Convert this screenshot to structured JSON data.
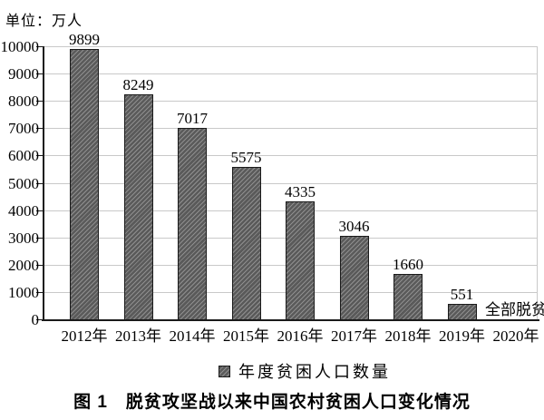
{
  "unit_label": "单位：万人",
  "chart_data": {
    "type": "bar",
    "title": "图 1　脱贫攻坚战以来中国农村贫困人口变化情况",
    "categories": [
      "2012年",
      "2013年",
      "2014年",
      "2015年",
      "2016年",
      "2017年",
      "2018年",
      "2019年",
      "2020年"
    ],
    "values": [
      9899,
      8249,
      7017,
      5575,
      4335,
      3046,
      1660,
      551,
      null
    ],
    "annotation": {
      "category": "2020年",
      "text": "全部脱贫"
    },
    "legend_label": "年度贫困人口数量",
    "unit": "万人",
    "ylim": [
      0,
      10000
    ],
    "ytick_step": 1000,
    "grid": true,
    "legend_position": "bottom",
    "bar_fill": "#5a5a5a",
    "bar_hatch": "#8f8f8f",
    "bar_border": "#1a1a1a",
    "gridline_color": "#c9c9c9",
    "axis_color": "#1a1a1a"
  },
  "caption": "图 1　脱贫攻坚战以来中国农村贫困人口变化情况"
}
